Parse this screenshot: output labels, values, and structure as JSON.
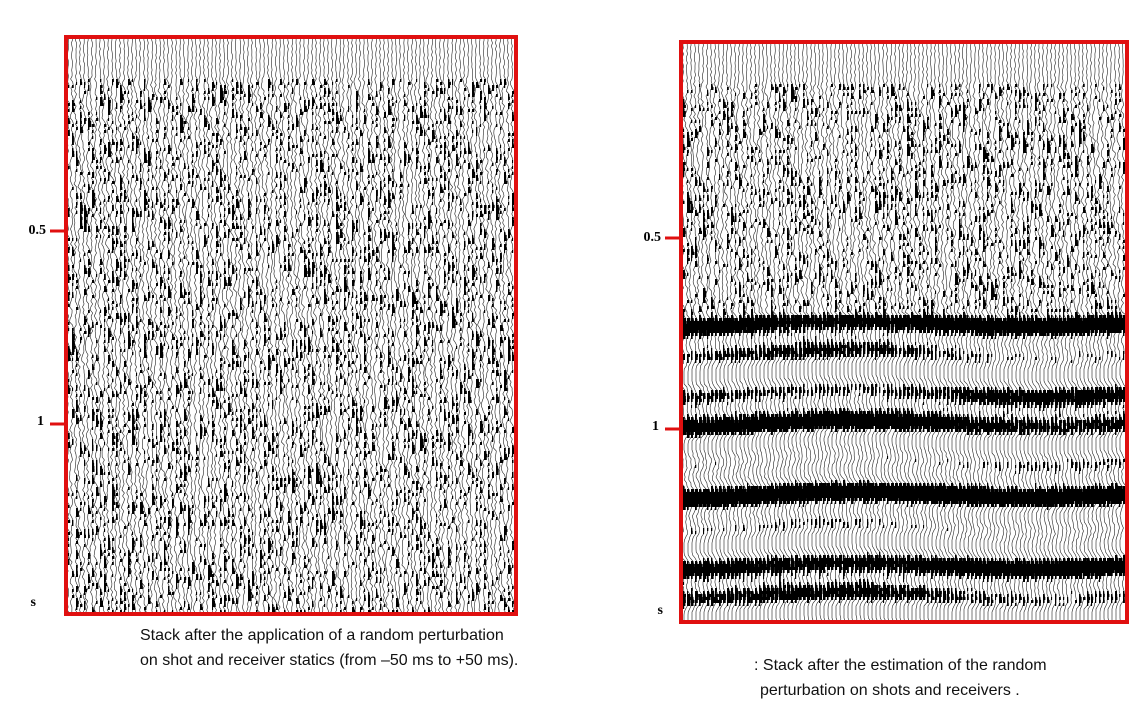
{
  "panels": [
    {
      "axis_labels": [
        "0.5",
        "1",
        "s"
      ],
      "caption": [
        "Stack after the application of a random perturbation",
        "on shot and receiver statics (from –50 ms to +50 ms)."
      ]
    },
    {
      "axis_labels": [
        "0.5",
        "1",
        "s"
      ],
      "caption": [
        ": Stack after the estimation of the random",
        "perturbation on shots and receivers ."
      ]
    }
  ]
}
